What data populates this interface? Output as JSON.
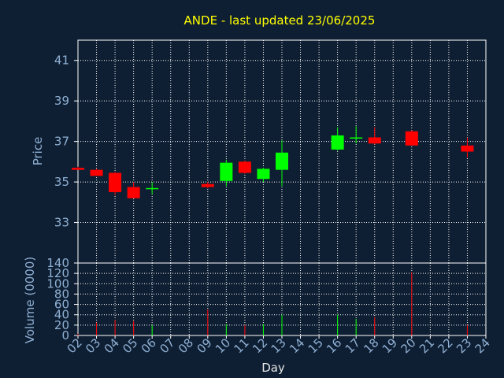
{
  "chart_data": {
    "type": "candlestick",
    "title": "ANDE - last updated 23/06/2025",
    "xlabel": "Day",
    "ylabel": "Price",
    "volume_label": "Volume (0000)",
    "x_ticks": [
      "02",
      "03",
      "04",
      "05",
      "06",
      "07",
      "08",
      "09",
      "10",
      "11",
      "12",
      "13",
      "14",
      "15",
      "16",
      "17",
      "18",
      "19",
      "20",
      "21",
      "22",
      "23",
      "24"
    ],
    "price_ticks": [
      33,
      35,
      37,
      39,
      41
    ],
    "price_ylim": [
      31.0,
      42.0
    ],
    "volume_ticks": [
      0,
      20,
      40,
      60,
      80,
      100,
      120,
      140
    ],
    "volume_ylim": [
      0,
      140
    ],
    "grid": true,
    "colors": {
      "up": "#00ff00",
      "down": "#ff0000",
      "background": "#0f1f33",
      "grid": "#ffffff",
      "title": "#ffff00",
      "axis_text": "#8fb0d4"
    },
    "candles": [
      {
        "day": 2.0,
        "open": 35.7,
        "high": 35.75,
        "low": 35.6,
        "close": 35.6,
        "volume": 3
      },
      {
        "day": 3.0,
        "open": 35.6,
        "high": 35.65,
        "low": 35.3,
        "close": 35.3,
        "volume": 25
      },
      {
        "day": 4.0,
        "open": 35.45,
        "high": 35.5,
        "low": 34.35,
        "close": 34.5,
        "volume": 30
      },
      {
        "day": 5.0,
        "open": 34.75,
        "high": 35.0,
        "low": 34.2,
        "close": 34.2,
        "volume": 28
      },
      {
        "day": 6.0,
        "open": 34.65,
        "high": 35.0,
        "low": 34.4,
        "close": 34.7,
        "volume": 20
      },
      {
        "day": 9.0,
        "open": 34.9,
        "high": 35.0,
        "low": 34.7,
        "close": 34.75,
        "volume": 50
      },
      {
        "day": 10.0,
        "open": 35.05,
        "high": 36.1,
        "low": 34.8,
        "close": 35.95,
        "volume": 22
      },
      {
        "day": 11.0,
        "open": 36.0,
        "high": 36.05,
        "low": 35.4,
        "close": 35.45,
        "volume": 20
      },
      {
        "day": 12.0,
        "open": 35.15,
        "high": 35.7,
        "low": 35.0,
        "close": 35.65,
        "volume": 22
      },
      {
        "day": 13.0,
        "open": 35.6,
        "high": 37.05,
        "low": 34.8,
        "close": 36.45,
        "volume": 40
      },
      {
        "day": 16.0,
        "open": 36.6,
        "high": 37.7,
        "low": 36.55,
        "close": 37.3,
        "volume": 40
      },
      {
        "day": 17.0,
        "open": 37.15,
        "high": 37.75,
        "low": 36.9,
        "close": 37.2,
        "volume": 32
      },
      {
        "day": 18.0,
        "open": 37.2,
        "high": 37.7,
        "low": 36.85,
        "close": 36.9,
        "volume": 35
      },
      {
        "day": 20.0,
        "open": 37.5,
        "high": 37.55,
        "low": 36.8,
        "close": 36.8,
        "volume": 122
      },
      {
        "day": 23.0,
        "open": 36.8,
        "high": 37.2,
        "low": 36.2,
        "close": 36.5,
        "volume": 20
      }
    ]
  }
}
